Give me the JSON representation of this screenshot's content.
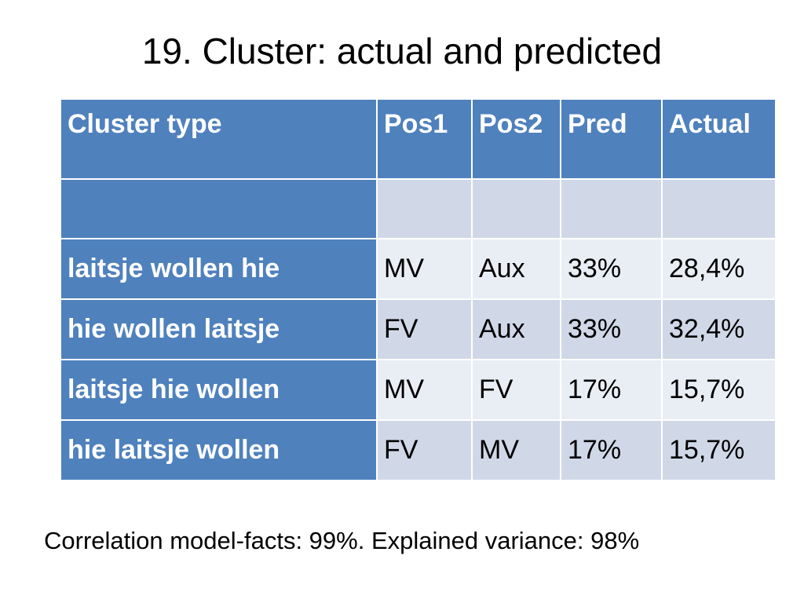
{
  "title": "19. Cluster: actual and predicted",
  "table": {
    "headers": [
      "Cluster type",
      "Pos1",
      "Pos2",
      "Pred",
      "Actual"
    ],
    "rows": [
      [
        "",
        "",
        "",
        "",
        ""
      ],
      [
        "laitsje wollen hie",
        "MV",
        "Aux",
        "33%",
        "28,4%"
      ],
      [
        "hie wollen laitsje",
        "FV",
        "Aux",
        "33%",
        "32,4%"
      ],
      [
        "laitsje hie wollen",
        "MV",
        "FV",
        "17%",
        "15,7%"
      ],
      [
        "hie laitsje wollen",
        "FV",
        "MV",
        "17%",
        "15,7%"
      ]
    ]
  },
  "footer": "Correlation model-facts: 99%. Explained variance: 98%",
  "colors": {
    "header_bg": "#4f81bd",
    "band_dark": "#d0d8e8",
    "band_light": "#e9edf4"
  }
}
